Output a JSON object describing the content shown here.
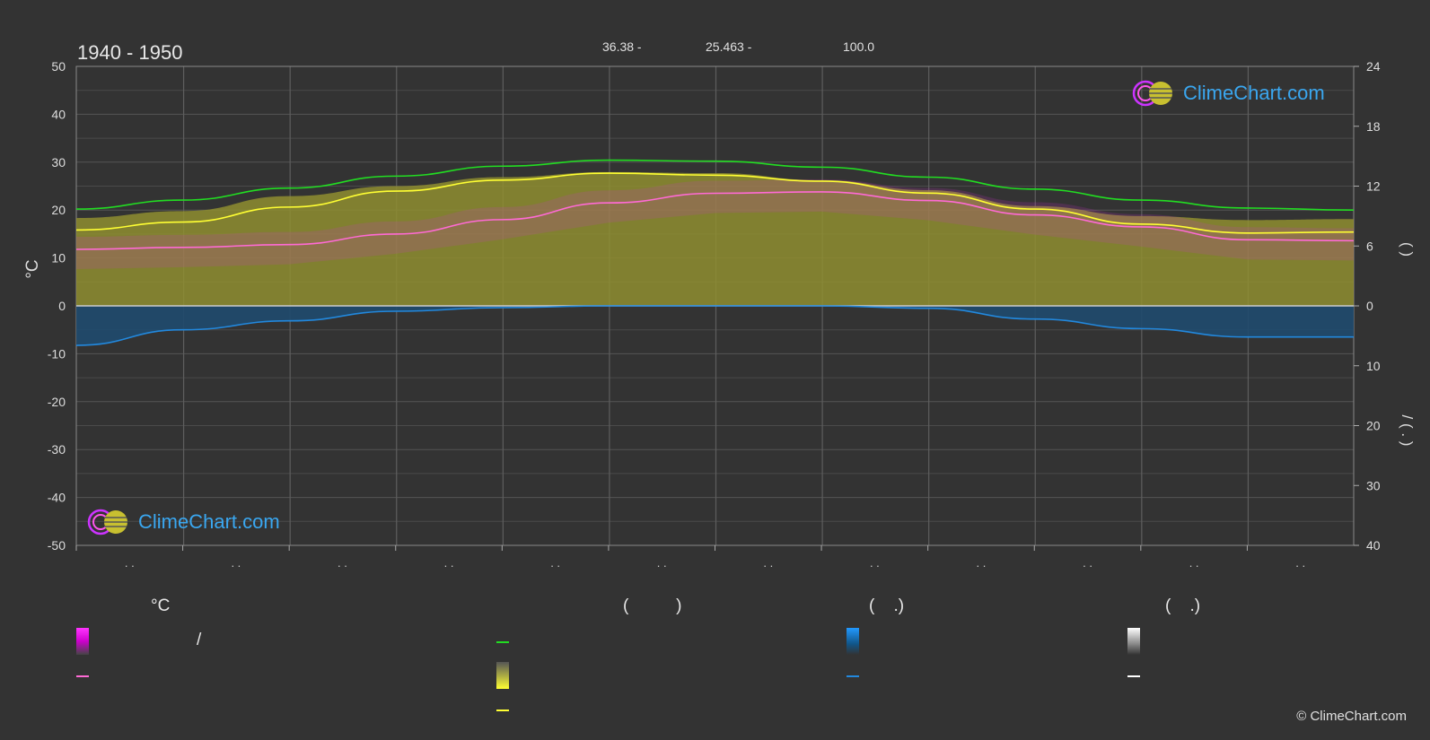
{
  "header": {
    "period": "1940 - 1950",
    "lat": "36.38 -",
    "lon": "25.463 -",
    "elev": "100.0"
  },
  "brand": {
    "logo_text": "ClimeChart.com",
    "copyright": "© ClimeChart.com"
  },
  "colors": {
    "background": "#333333",
    "daylight": "#22dd22",
    "sunshine": "#ffff33",
    "sunshine_area": "#8f8e30",
    "temp_mean": "#ff6ad5",
    "temp_range": "#cc33cc",
    "precipitation": "#2288dd",
    "snow": "#ffffff"
  },
  "chart_data": {
    "type": "area",
    "months": 12,
    "x_tick_labels": [
      ". .",
      ". .",
      ". .",
      ". .",
      ". .",
      ". .",
      ". .",
      ". .",
      ". .",
      ". .",
      ". .",
      ". ."
    ],
    "left_axis": {
      "label": "°C",
      "ylim": [
        -50,
        50
      ],
      "ticks": [
        50,
        40,
        30,
        20,
        10,
        0,
        -10,
        -20,
        -30,
        -40,
        -50
      ]
    },
    "right_axis_top": {
      "label": "(    )",
      "ylim": [
        0,
        24
      ],
      "ticks": [
        24,
        18,
        12,
        6,
        0
      ]
    },
    "right_axis_bottom": {
      "label": "/   ( . )",
      "ylim": [
        0,
        40
      ],
      "ticks": [
        0,
        10,
        20,
        30,
        40
      ]
    },
    "grid": true,
    "series": [
      {
        "key": "daylight",
        "axis": "right_top",
        "x": [
          0,
          1,
          2,
          3,
          4,
          5,
          6,
          7,
          8,
          9,
          10,
          11,
          12
        ],
        "values": [
          9.7,
          10.6,
          11.8,
          13.0,
          14.0,
          14.6,
          14.5,
          13.9,
          12.9,
          11.7,
          10.6,
          9.8,
          9.6
        ]
      },
      {
        "key": "sunshine",
        "axis": "right_top",
        "x": [
          0,
          1,
          2,
          3,
          4,
          5,
          6,
          7,
          8,
          9,
          10,
          11,
          12
        ],
        "values": [
          7.6,
          8.4,
          9.9,
          11.5,
          12.6,
          13.3,
          13.1,
          12.5,
          11.3,
          9.7,
          8.2,
          7.3,
          7.4
        ]
      },
      {
        "key": "sunshine_area",
        "axis": "right_top",
        "x": [
          0,
          1,
          2,
          3,
          4,
          5,
          6,
          7,
          8,
          9,
          10,
          11,
          12
        ],
        "values": [
          8.8,
          9.5,
          11.0,
          12.0,
          12.9,
          13.4,
          13.3,
          12.6,
          11.6,
          10.0,
          9.0,
          8.6,
          8.7
        ]
      },
      {
        "key": "temp_mean",
        "axis": "left",
        "x": [
          0,
          1,
          2,
          3,
          4,
          5,
          6,
          7,
          8,
          9,
          10,
          11,
          12
        ],
        "values": [
          11.8,
          12.2,
          12.8,
          15.0,
          18.0,
          21.5,
          23.5,
          23.8,
          22.0,
          19.0,
          16.5,
          13.8,
          13.6
        ]
      },
      {
        "key": "precipitation",
        "axis": "right_bottom",
        "x": [
          0,
          1,
          2,
          3,
          4,
          5,
          6,
          7,
          8,
          9,
          10,
          11,
          12
        ],
        "values": [
          6.6,
          4.0,
          2.5,
          0.9,
          0.3,
          0.0,
          0.0,
          0.0,
          0.4,
          2.2,
          3.8,
          5.2,
          5.2
        ]
      }
    ]
  },
  "legend": {
    "col1_header": "°C",
    "col1_sep": "/",
    "col2_header": "(          )",
    "col3_header": "(    .)",
    "col4_header": "(    .)"
  }
}
